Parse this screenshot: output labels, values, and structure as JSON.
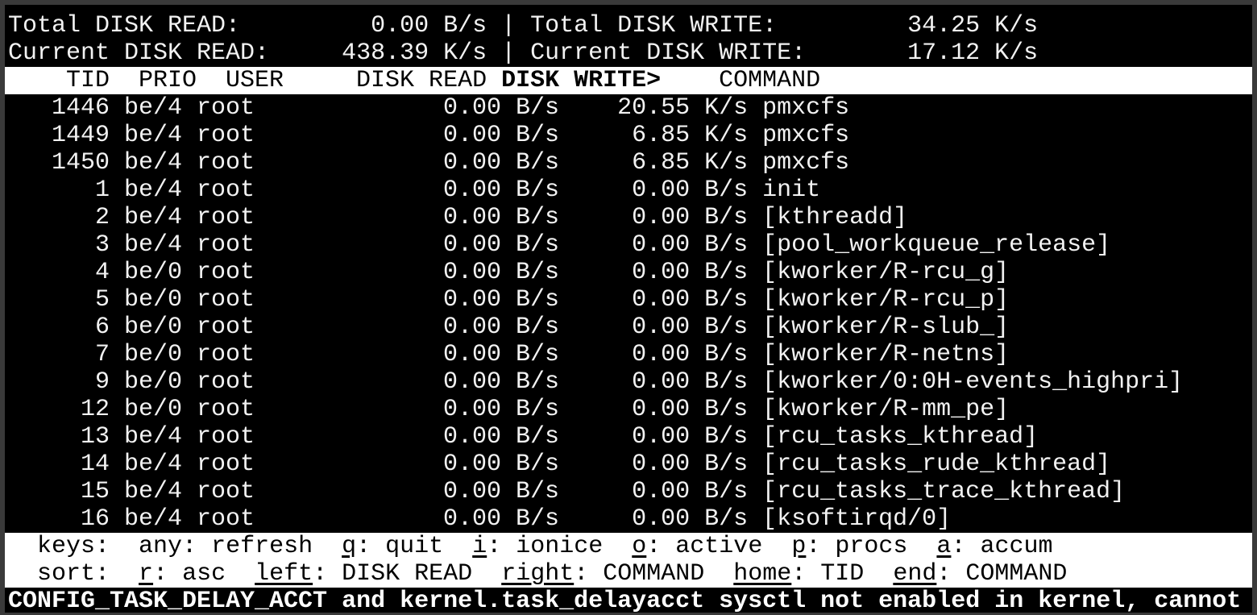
{
  "summary": {
    "total_read_label": "Total DISK READ:",
    "total_read_value": "0.00 B/s",
    "total_write_label": "Total DISK WRITE:",
    "total_write_value": "34.25 K/s",
    "current_read_label": "Current DISK READ:",
    "current_read_value": "438.39 K/s",
    "current_write_label": "Current DISK WRITE:",
    "current_write_value": "17.12 K/s",
    "separator": "|"
  },
  "columns": {
    "tid": "TID",
    "prio": "PRIO",
    "user": "USER",
    "disk_read": "DISK READ",
    "disk_write": "DISK WRITE>",
    "command": "COMMAND"
  },
  "rows": [
    {
      "tid": "1446",
      "prio": "be/4",
      "user": "root",
      "read": "0.00 B/s",
      "write": "20.55 K/s",
      "command": "pmxcfs"
    },
    {
      "tid": "1449",
      "prio": "be/4",
      "user": "root",
      "read": "0.00 B/s",
      "write": "6.85 K/s",
      "command": "pmxcfs"
    },
    {
      "tid": "1450",
      "prio": "be/4",
      "user": "root",
      "read": "0.00 B/s",
      "write": "6.85 K/s",
      "command": "pmxcfs"
    },
    {
      "tid": "1",
      "prio": "be/4",
      "user": "root",
      "read": "0.00 B/s",
      "write": "0.00 B/s",
      "command": "init"
    },
    {
      "tid": "2",
      "prio": "be/4",
      "user": "root",
      "read": "0.00 B/s",
      "write": "0.00 B/s",
      "command": "[kthreadd]"
    },
    {
      "tid": "3",
      "prio": "be/4",
      "user": "root",
      "read": "0.00 B/s",
      "write": "0.00 B/s",
      "command": "[pool_workqueue_release]"
    },
    {
      "tid": "4",
      "prio": "be/0",
      "user": "root",
      "read": "0.00 B/s",
      "write": "0.00 B/s",
      "command": "[kworker/R-rcu_g]"
    },
    {
      "tid": "5",
      "prio": "be/0",
      "user": "root",
      "read": "0.00 B/s",
      "write": "0.00 B/s",
      "command": "[kworker/R-rcu_p]"
    },
    {
      "tid": "6",
      "prio": "be/0",
      "user": "root",
      "read": "0.00 B/s",
      "write": "0.00 B/s",
      "command": "[kworker/R-slub_]"
    },
    {
      "tid": "7",
      "prio": "be/0",
      "user": "root",
      "read": "0.00 B/s",
      "write": "0.00 B/s",
      "command": "[kworker/R-netns]"
    },
    {
      "tid": "9",
      "prio": "be/0",
      "user": "root",
      "read": "0.00 B/s",
      "write": "0.00 B/s",
      "command": "[kworker/0:0H-events_highpri]"
    },
    {
      "tid": "12",
      "prio": "be/0",
      "user": "root",
      "read": "0.00 B/s",
      "write": "0.00 B/s",
      "command": "[kworker/R-mm_pe]"
    },
    {
      "tid": "13",
      "prio": "be/4",
      "user": "root",
      "read": "0.00 B/s",
      "write": "0.00 B/s",
      "command": "[rcu_tasks_kthread]"
    },
    {
      "tid": "14",
      "prio": "be/4",
      "user": "root",
      "read": "0.00 B/s",
      "write": "0.00 B/s",
      "command": "[rcu_tasks_rude_kthread]"
    },
    {
      "tid": "15",
      "prio": "be/4",
      "user": "root",
      "read": "0.00 B/s",
      "write": "0.00 B/s",
      "command": "[rcu_tasks_trace_kthread]"
    },
    {
      "tid": "16",
      "prio": "be/4",
      "user": "root",
      "read": "0.00 B/s",
      "write": "0.00 B/s",
      "command": "[ksoftirqd/0]"
    }
  ],
  "footer": {
    "keys_label": "keys:",
    "keys": [
      {
        "key": "any",
        "label": " refresh",
        "underline": false
      },
      {
        "key": "q",
        "label": " quit",
        "underline": true
      },
      {
        "key": "i",
        "label": " ionice",
        "underline": true
      },
      {
        "key": "o",
        "label": " active",
        "underline": true
      },
      {
        "key": "p",
        "label": " procs",
        "underline": true
      },
      {
        "key": "a",
        "label": " accum",
        "underline": true
      }
    ],
    "sort_label": "sort:",
    "sort": [
      {
        "key": "r",
        "label": " asc",
        "underline": true
      },
      {
        "key": "left",
        "label": " DISK READ",
        "underline": true
      },
      {
        "key": "right",
        "label": " COMMAND",
        "underline": true
      },
      {
        "key": "home",
        "label": " TID",
        "underline": true
      },
      {
        "key": "end",
        "label": " COMMAND",
        "underline": true
      }
    ]
  },
  "message": "CONFIG_TASK_DELAY_ACCT and kernel.task_delayacct sysctl not enabled in kernel, cannot"
}
